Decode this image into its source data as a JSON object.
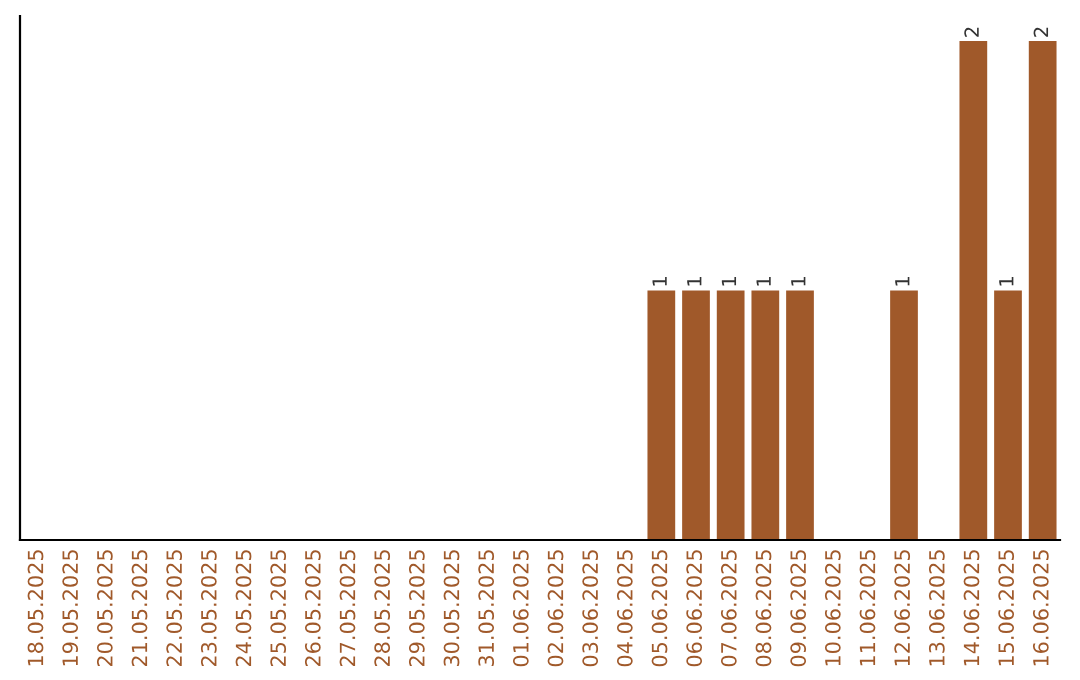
{
  "chart_data": {
    "type": "bar",
    "categories": [
      "18.05.2025",
      "19.05.2025",
      "20.05.2025",
      "21.05.2025",
      "22.05.2025",
      "23.05.2025",
      "24.05.2025",
      "25.05.2025",
      "26.05.2025",
      "27.05.2025",
      "28.05.2025",
      "29.05.2025",
      "30.05.2025",
      "31.05.2025",
      "01.06.2025",
      "02.06.2025",
      "03.06.2025",
      "04.06.2025",
      "05.06.2025",
      "06.06.2025",
      "07.06.2025",
      "08.06.2025",
      "09.06.2025",
      "10.06.2025",
      "11.06.2025",
      "12.06.2025",
      "13.06.2025",
      "14.06.2025",
      "15.06.2025",
      "16.06.2025"
    ],
    "values": [
      null,
      null,
      null,
      null,
      null,
      null,
      null,
      null,
      null,
      null,
      null,
      null,
      null,
      null,
      null,
      null,
      null,
      null,
      1,
      1,
      1,
      1,
      1,
      null,
      null,
      1,
      null,
      2,
      1,
      2
    ],
    "value_labels": [
      null,
      null,
      null,
      null,
      null,
      null,
      null,
      null,
      null,
      null,
      null,
      null,
      null,
      null,
      null,
      null,
      null,
      null,
      "1",
      "1",
      "1",
      "1",
      "1",
      null,
      null,
      "1",
      null,
      "2",
      "1",
      "2"
    ],
    "color": "#a0592a",
    "tick_labels": "x",
    "grid": false,
    "legend": false
  }
}
